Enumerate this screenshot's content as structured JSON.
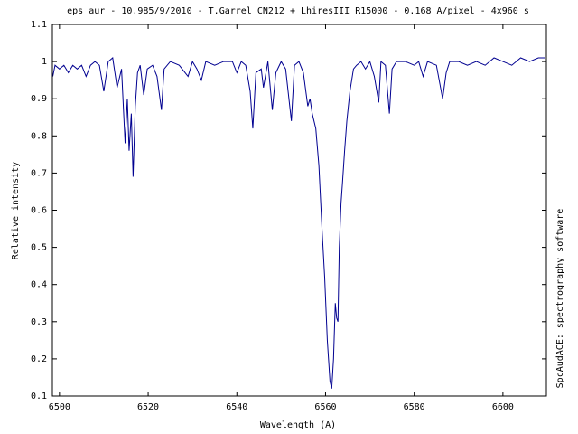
{
  "chart_data": {
    "type": "line",
    "title": "eps aur - 10.985/9/2010 - T.Garrel CN212 + LhiresIII R15000 - 0.168 A/pixel - 4x960 s",
    "x_label": "Wavelength (A)",
    "y_label": "Relative intensity",
    "side_note": "SpcAudACE: spectrography software",
    "xlim": [
      6498.4,
      6609.8
    ],
    "ylim": [
      0.1,
      1.1
    ],
    "xticks": [
      6500,
      6520,
      6540,
      6560,
      6580,
      6600
    ],
    "yticks": [
      0.1,
      0.2,
      0.3,
      0.4,
      0.5,
      0.6,
      0.7,
      0.8,
      0.9,
      1,
      1.1
    ],
    "grid": false,
    "x": [
      6498.5,
      6499,
      6500,
      6501,
      6502,
      6503,
      6504,
      6505,
      6506,
      6507,
      6508,
      6509,
      6510,
      6511,
      6512,
      6513,
      6514,
      6514.8,
      6515.3,
      6515.7,
      6516.2,
      6516.6,
      6517.1,
      6517.6,
      6518.2,
      6519,
      6519.8,
      6521,
      6522,
      6523,
      6523.6,
      6525,
      6527,
      6529,
      6530,
      6531,
      6532,
      6533,
      6535,
      6537,
      6539,
      6540,
      6541,
      6542,
      6543,
      6543.6,
      6544.3,
      6545.5,
      6546,
      6547,
      6548,
      6548.8,
      6550,
      6551,
      6552.3,
      6553,
      6554,
      6555,
      6556,
      6556.5,
      6557,
      6557.8,
      6558.5,
      6559.2,
      6559.8,
      6560.4,
      6561,
      6561.4,
      6561.8,
      6562.2,
      6562.5,
      6562.8,
      6563.1,
      6563.5,
      6563.8,
      6564.3,
      6564.8,
      6565.5,
      6566.3,
      6567,
      6568,
      6569,
      6570,
      6571,
      6572,
      6572.5,
      6573.5,
      6574.4,
      6575,
      6576,
      6578,
      6580,
      6581,
      6582,
      6583,
      6585,
      6586.4,
      6587.2,
      6588,
      6590,
      6592,
      6594,
      6596,
      6598,
      6600,
      6602,
      6604,
      6606,
      6608,
      6609.5
    ],
    "series": [
      {
        "color": "#000090",
        "values": [
          0.96,
          0.99,
          0.98,
          0.99,
          0.97,
          0.99,
          0.98,
          0.99,
          0.96,
          0.99,
          1.0,
          0.99,
          0.92,
          1.0,
          1.01,
          0.93,
          0.98,
          0.78,
          0.9,
          0.76,
          0.86,
          0.69,
          0.88,
          0.97,
          0.99,
          0.91,
          0.98,
          0.99,
          0.96,
          0.87,
          0.98,
          1.0,
          0.99,
          0.96,
          1.0,
          0.98,
          0.95,
          1.0,
          0.99,
          1.0,
          1.0,
          0.97,
          1.0,
          0.99,
          0.92,
          0.82,
          0.97,
          0.98,
          0.93,
          1.0,
          0.87,
          0.97,
          1.0,
          0.98,
          0.84,
          0.99,
          1.0,
          0.97,
          0.88,
          0.9,
          0.86,
          0.82,
          0.72,
          0.55,
          0.42,
          0.25,
          0.14,
          0.12,
          0.2,
          0.35,
          0.31,
          0.3,
          0.5,
          0.62,
          0.67,
          0.76,
          0.84,
          0.92,
          0.98,
          0.99,
          1.0,
          0.98,
          1.0,
          0.96,
          0.89,
          1.0,
          0.99,
          0.86,
          0.98,
          1.0,
          1.0,
          0.99,
          1.0,
          0.96,
          1.0,
          0.99,
          0.9,
          0.97,
          1.0,
          1.0,
          0.99,
          1.0,
          0.99,
          1.01,
          1.0,
          0.99,
          1.01,
          1.0,
          1.01,
          1.01
        ]
      }
    ]
  }
}
